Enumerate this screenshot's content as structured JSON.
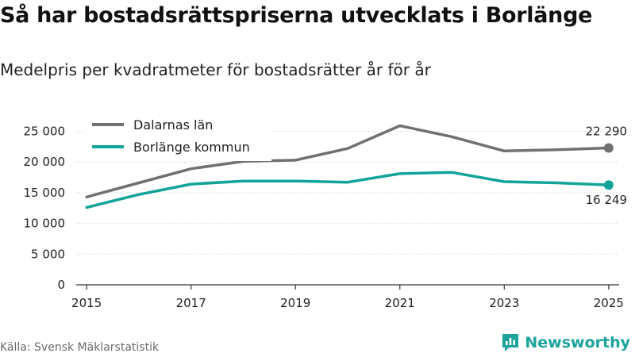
{
  "header": {
    "title": "Så har bostadsrättspriserna utvecklats i Borlänge",
    "subtitle": "Medelpris per kvadratmeter för bostadsrätter år för år"
  },
  "footer": {
    "source": "Källa: Svensk Mäklarstatistik",
    "brand": "Newsworthy",
    "brand_color": "#1ba39c"
  },
  "chart_data": {
    "type": "line",
    "title": "Så har bostadsrättspriserna utvecklats i Borlänge",
    "subtitle": "Medelpris per kvadratmeter för bostadsrätter år för år",
    "xlabel": "",
    "ylabel": "",
    "ylim": [
      0,
      27000
    ],
    "xlim": [
      2014.8,
      2025.2
    ],
    "y_ticks": [
      0,
      5000,
      10000,
      15000,
      20000,
      25000
    ],
    "y_tick_labels": [
      "0",
      "5 000",
      "10 000",
      "15 000",
      "20 000",
      "25 000"
    ],
    "x_ticks": [
      2015,
      2017,
      2019,
      2021,
      2023,
      2025
    ],
    "x_tick_labels": [
      "2015",
      "2017",
      "2019",
      "2021",
      "2023",
      "2025"
    ],
    "grid": "horizontal",
    "legend_position": "top-left",
    "series": [
      {
        "name": "Dalarnas län",
        "color": "#707070",
        "x": [
          2015,
          2016,
          2017,
          2018,
          2019,
          2020,
          2021,
          2022,
          2023,
          2024,
          2025
        ],
        "values": [
          14300,
          16600,
          18900,
          20100,
          20300,
          22200,
          25900,
          24100,
          21800,
          22000,
          22290
        ],
        "end_label": "22 290"
      },
      {
        "name": "Borlänge kommun",
        "color": "#12a39a",
        "x": [
          2015,
          2016,
          2017,
          2018,
          2019,
          2020,
          2021,
          2022,
          2023,
          2024,
          2025
        ],
        "values": [
          12600,
          14700,
          16400,
          16900,
          16900,
          16700,
          18100,
          18300,
          16800,
          16600,
          16249
        ],
        "end_label": "16 249"
      }
    ]
  }
}
